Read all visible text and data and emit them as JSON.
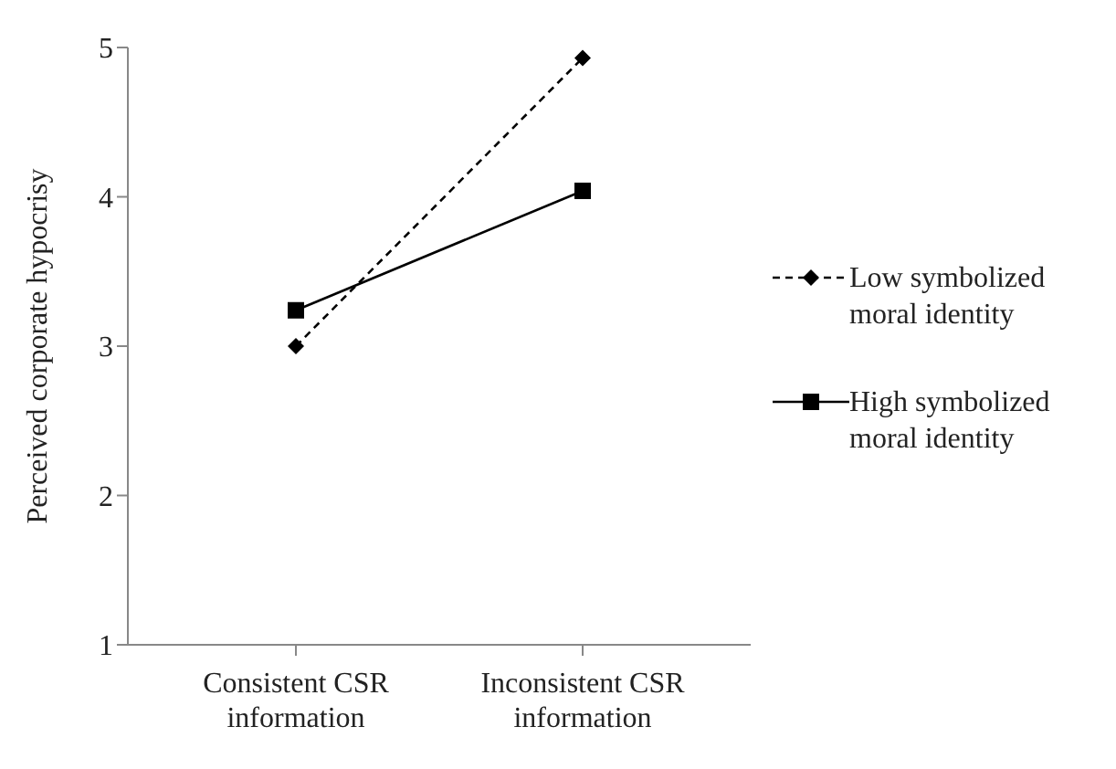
{
  "chart_data": {
    "type": "line",
    "ylabel": "Perceived corporate hypocrisy",
    "categories": [
      "Consistent CSR information",
      "Inconsistent CSR information"
    ],
    "series": [
      {
        "name": "Low symbolized moral identity",
        "color": "#000000",
        "values": [
          3.0,
          4.93
        ],
        "marker": "diamond",
        "line_style": "dashed"
      },
      {
        "name": "High symbolized moral identity",
        "color": "#000000",
        "values": [
          3.24,
          4.04
        ],
        "marker": "square",
        "line_style": "solid"
      }
    ],
    "ylim": [
      1,
      5
    ],
    "yticks": [
      1,
      2,
      3,
      4,
      5
    ],
    "grid": false,
    "legend": "right"
  }
}
